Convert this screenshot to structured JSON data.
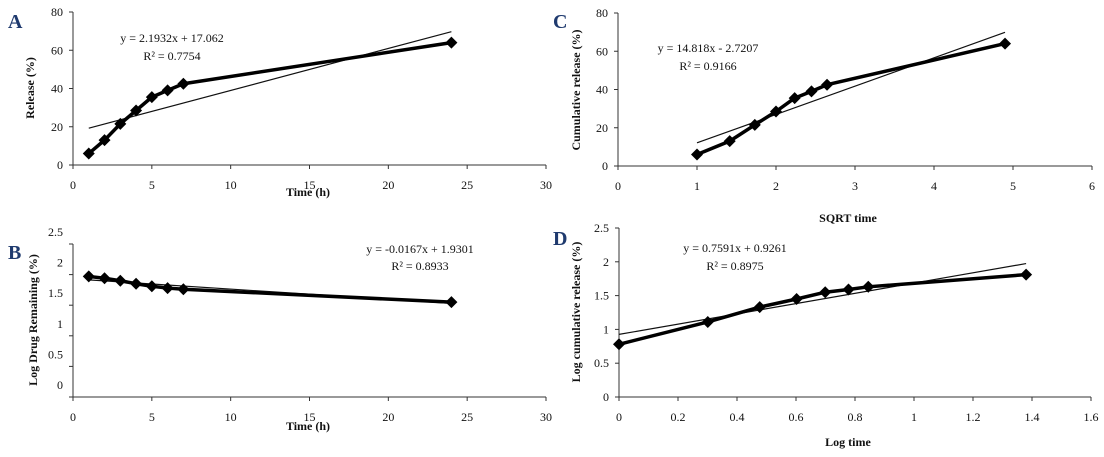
{
  "chart_data": [
    {
      "panel": "A",
      "type": "line",
      "xlabel": "Time (h)",
      "ylabel": "Release (%)",
      "xlim": [
        0,
        30
      ],
      "ylim": [
        0,
        80
      ],
      "xticks": [
        "0",
        "5",
        "10",
        "15",
        "20",
        "25",
        "30"
      ],
      "yticks": [
        "0",
        "20",
        "40",
        "60",
        "80"
      ],
      "series": [
        {
          "name": "Release",
          "x": [
            1,
            2,
            3,
            4,
            5,
            6,
            7,
            24
          ],
          "y": [
            6,
            13,
            21.5,
            28.5,
            35.5,
            39,
            42.5,
            64
          ]
        }
      ],
      "trendline": {
        "slope": 2.1932,
        "intercept": 17.062,
        "x_range": [
          1,
          24
        ]
      },
      "equation": "y = 2.1932x + 17.062",
      "r2": "R² = 0.7754",
      "grid": false
    },
    {
      "panel": "B",
      "type": "line",
      "xlabel": "Time (h)",
      "ylabel": "Log Drug Remaining (%)",
      "xlim": [
        0,
        30
      ],
      "ylim": [
        0,
        2.5
      ],
      "xticks": [
        "0",
        "5",
        "10",
        "15",
        "20",
        "25",
        "30"
      ],
      "yticks": [
        "0",
        "0.5",
        "1",
        "1.5",
        "2",
        "2.5"
      ],
      "series": [
        {
          "name": "Log Drug Remaining",
          "x": [
            1,
            2,
            3,
            4,
            5,
            6,
            7,
            24
          ],
          "y": [
            1.97,
            1.94,
            1.9,
            1.85,
            1.81,
            1.78,
            1.76,
            1.55
          ]
        }
      ],
      "trendline": {
        "slope": -0.0167,
        "intercept": 1.9301,
        "x_range": [
          1,
          24
        ]
      },
      "equation": "y = -0.0167x + 1.9301",
      "r2": "R² = 0.8933",
      "grid": false
    },
    {
      "panel": "C",
      "type": "line",
      "xlabel": "SQRT time",
      "ylabel": "Cumulative release (%)",
      "xlim": [
        0,
        6
      ],
      "ylim": [
        0,
        80
      ],
      "xticks": [
        "0",
        "1",
        "2",
        "3",
        "4",
        "5",
        "6"
      ],
      "yticks": [
        "0",
        "20",
        "40",
        "60",
        "80"
      ],
      "series": [
        {
          "name": "Cumulative release",
          "x": [
            1,
            1.414,
            1.732,
            2,
            2.236,
            2.449,
            2.646,
            4.899
          ],
          "y": [
            6,
            13,
            21.5,
            28.5,
            35.5,
            39,
            42.5,
            64
          ]
        }
      ],
      "trendline": {
        "slope": 14.818,
        "intercept": -2.7207,
        "x_range": [
          1,
          4.899
        ]
      },
      "equation": "y = 14.818x - 2.7207",
      "r2": "R² = 0.9166",
      "grid": false
    },
    {
      "panel": "D",
      "type": "line",
      "xlabel": "Log time",
      "ylabel": "Log cumulative release (%)",
      "xlim": [
        0,
        1.6
      ],
      "ylim": [
        0,
        2.5
      ],
      "xticks": [
        "0",
        "0.2",
        "0.4",
        "0.6",
        "0.8",
        "1",
        "1.2",
        "1.4",
        "1.6"
      ],
      "yticks": [
        "0",
        "0.5",
        "1",
        "1.5",
        "2",
        "2.5"
      ],
      "series": [
        {
          "name": "Log cumulative release",
          "x": [
            0,
            0.301,
            0.477,
            0.602,
            0.699,
            0.778,
            0.845,
            1.38
          ],
          "y": [
            0.78,
            1.11,
            1.33,
            1.45,
            1.55,
            1.59,
            1.63,
            1.81
          ]
        }
      ],
      "trendline": {
        "slope": 0.7591,
        "intercept": 0.9261,
        "x_range": [
          0,
          1.38
        ]
      },
      "equation": "y = 0.7591x + 0.9261",
      "r2": "R² = 0.8975",
      "grid": false
    }
  ]
}
